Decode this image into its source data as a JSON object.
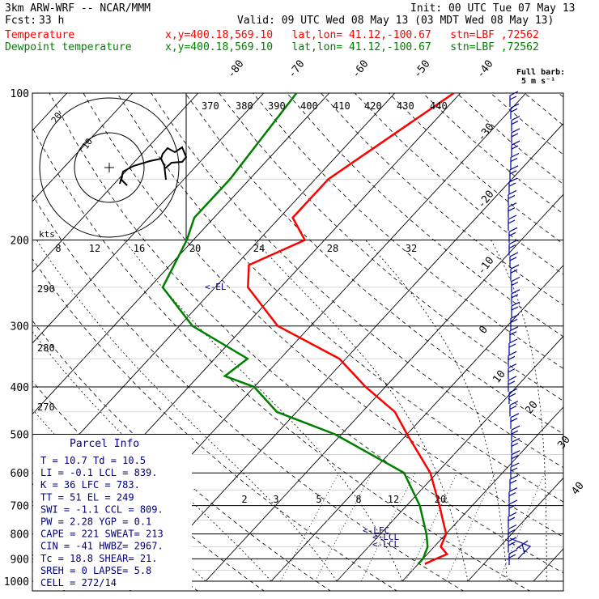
{
  "header": {
    "model": "3km ARW-WRF -- NCAR/MMM",
    "init": "Init: 00 UTC Tue 07 May 13",
    "fcst_label": "Fcst:",
    "fcst_hours": "33 h",
    "valid": "Valid: 09 UTC Wed 08 May 13 (03 MDT Wed 08 May 13)",
    "temperature_label": "Temperature",
    "dewpoint_label": "Dewpoint temperature",
    "location_line": "x,y=400.18,569.10   lat,lon= 41.12,-100.67   stn=LBF ,72562",
    "colors": {
      "temperature": "#ff0000",
      "dewpoint": "#008000",
      "wind": "#0000a0",
      "parcel": "#000080"
    }
  },
  "barb_legend": {
    "title": "Full barb:",
    "value": "5 m s⁻¹"
  },
  "chart_data": {
    "type": "line",
    "diagram": "skew-T log-P",
    "pressure_levels": [
      "100",
      "200",
      "300",
      "400",
      "500",
      "600",
      "700",
      "800",
      "900",
      "1000"
    ],
    "isotherm_labels": [
      "-80",
      "-70",
      "-60",
      "-50",
      "-40",
      "-30",
      "-20",
      "-10",
      "0",
      "10",
      "20",
      "30",
      "40"
    ],
    "theta_labels": [
      "370",
      "380",
      "390",
      "400",
      "410",
      "420",
      "430",
      "440",
      "290",
      "280",
      "270"
    ],
    "mixing_ratio_labels": [
      "2",
      "3",
      "5",
      "8",
      "12",
      "20"
    ],
    "hodograph": {
      "unit": "kts",
      "ring_labels": [
        "10",
        "20"
      ],
      "speed_ticks": [
        "8",
        "12",
        "16",
        "20",
        "24",
        "28",
        "32"
      ]
    },
    "series": [
      {
        "name": "Temperature",
        "points": [
          [
            100,
            -51
          ],
          [
            150,
            -58
          ],
          [
            180,
            -58
          ],
          [
            200,
            -53
          ],
          [
            225,
            -58
          ],
          [
            250,
            -55
          ],
          [
            300,
            -45
          ],
          [
            350,
            -31
          ],
          [
            400,
            -23
          ],
          [
            450,
            -15
          ],
          [
            500,
            -10
          ],
          [
            600,
            -1
          ],
          [
            700,
            5
          ],
          [
            800,
            10
          ],
          [
            850,
            11
          ],
          [
            880,
            13
          ],
          [
            900,
            12
          ],
          [
            922,
            11
          ]
        ]
      },
      {
        "name": "Dewpoint temperature",
        "points": [
          [
            100,
            -75
          ],
          [
            150,
            -73
          ],
          [
            180,
            -73
          ],
          [
            200,
            -71
          ],
          [
            250,
            -68
          ],
          [
            300,
            -58
          ],
          [
            350,
            -45
          ],
          [
            380,
            -46
          ],
          [
            400,
            -40
          ],
          [
            450,
            -33
          ],
          [
            500,
            -21
          ],
          [
            600,
            -5
          ],
          [
            700,
            2
          ],
          [
            800,
            7
          ],
          [
            850,
            9
          ],
          [
            900,
            10
          ],
          [
            922,
            10
          ]
        ]
      }
    ],
    "parcel_markers": [
      {
        "label": "EL",
        "pressure": 249
      },
      {
        "label": "LFC",
        "pressure": 783
      },
      {
        "label": "LCL",
        "pressure": 809
      },
      {
        "label": "LCL",
        "pressure": 839
      }
    ]
  },
  "parcel_info": {
    "title": "Parcel Info",
    "rows": [
      "T  =    10.7  Td  =  10.5",
      "LI =    -0.1  LCL =  839.",
      "K  =      36  LFC =  783.",
      "TT =      51  EL  =   249",
      "SWI =   -1.1  CCL =  809.",
      "PW =    2.28  YGP =   0.1",
      "CAPE =   221  SWEAT=  213",
      "CIN =    -41  HWBZ= 2967.",
      "Tc =    18.8  SHEAR=  21.",
      "SREH =     0  LAPSE=  5.8",
      "CELL = 272/14"
    ]
  }
}
